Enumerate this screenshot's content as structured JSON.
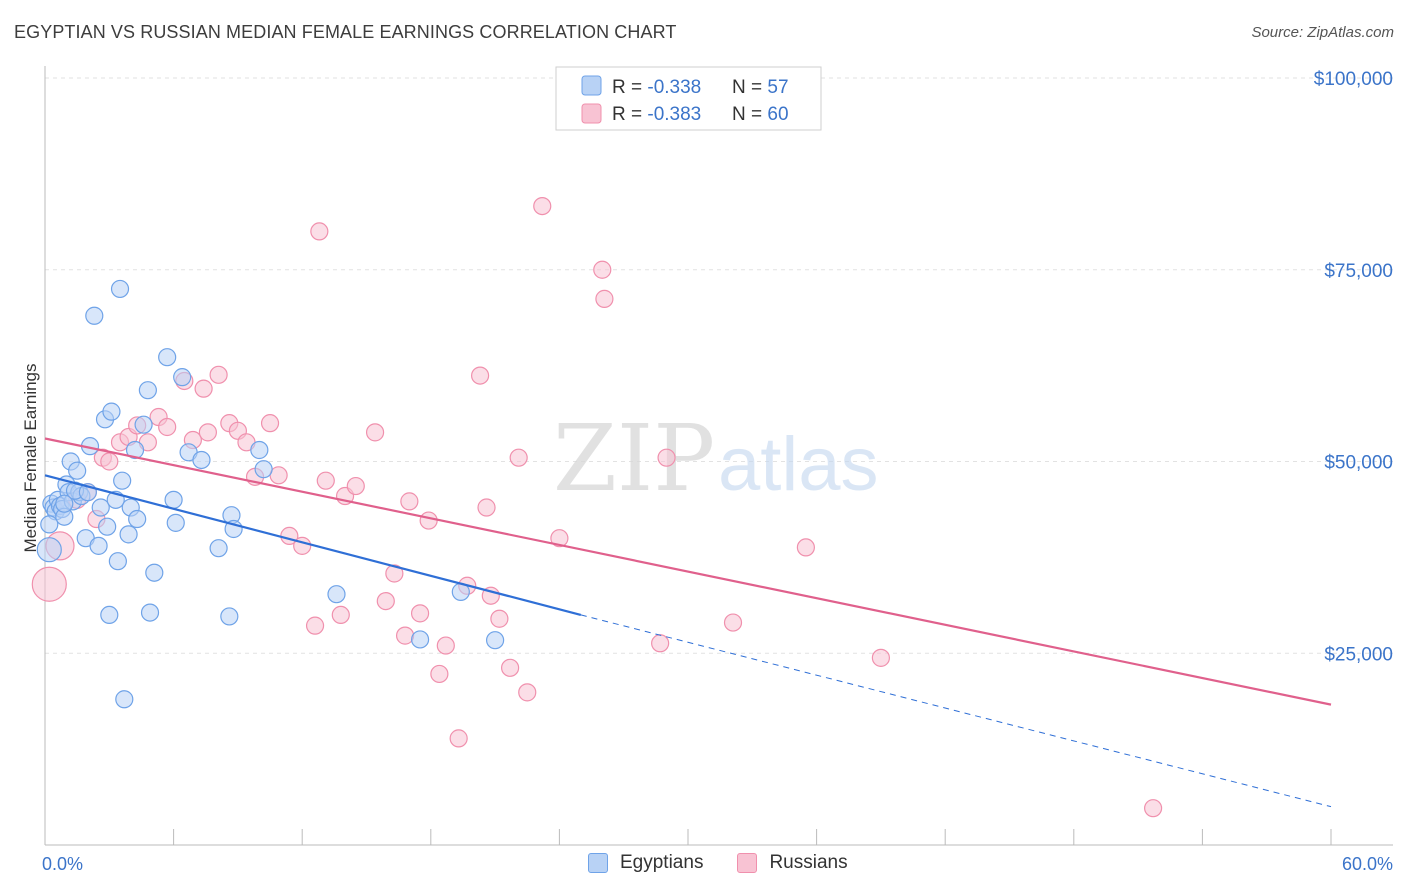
{
  "title": "EGYPTIAN VS RUSSIAN MEDIAN FEMALE EARNINGS CORRELATION CHART",
  "source": "Source: ZipAtlas.com",
  "watermark": {
    "zip": "ZIP",
    "atlas": "atlas"
  },
  "colors": {
    "blue": "#6fa3e8",
    "blue_fill": "#b8d2f5",
    "blue_line": "#2f6fd6",
    "pink": "#f090ad",
    "pink_fill": "#f8c3d3",
    "pink_line": "#e0608c",
    "axis_text": "#3b74c9",
    "grid": "#e2e2e2"
  },
  "legend_top": {
    "egyptians": {
      "r_label": "R = ",
      "r_value": "-0.338",
      "n_label": "N = ",
      "n_value": "57"
    },
    "russians": {
      "r_label": "R = ",
      "r_value": "-0.383",
      "n_label": "N = ",
      "n_value": "60"
    }
  },
  "legend_bottom": {
    "egyptians": "Egyptians",
    "russians": "Russians"
  },
  "chart_data": {
    "type": "scatter",
    "title": "EGYPTIAN VS RUSSIAN MEDIAN FEMALE EARNINGS CORRELATION CHART",
    "xlabel": "",
    "ylabel": "Median Female Earnings",
    "xlim": [
      0,
      60
    ],
    "ylim": [
      0,
      105000
    ],
    "x_tick_labels": {
      "left": "0.0%",
      "right": "60.0%"
    },
    "y_ticks": [
      {
        "value": 25000,
        "label": "$25,000"
      },
      {
        "value": 50000,
        "label": "$50,000"
      },
      {
        "value": 75000,
        "label": "$75,000"
      },
      {
        "value": 100000,
        "label": "$100,000"
      }
    ],
    "series": [
      {
        "name": "Egyptians",
        "r": -0.338,
        "n": 57,
        "trend": {
          "x0": 0,
          "y0": 48200,
          "x1": 25,
          "y1": 30000,
          "dash_x1": 60,
          "dash_y1": 5000
        },
        "points": [
          [
            0.3,
            44500
          ],
          [
            0.4,
            44000
          ],
          [
            0.5,
            43500
          ],
          [
            0.6,
            45000
          ],
          [
            0.7,
            44200
          ],
          [
            0.8,
            43800
          ],
          [
            0.9,
            42800
          ],
          [
            1.0,
            47000
          ],
          [
            1.1,
            46000
          ],
          [
            1.2,
            50000
          ],
          [
            1.3,
            44800
          ],
          [
            1.5,
            48800
          ],
          [
            1.6,
            46000
          ],
          [
            1.7,
            45500
          ],
          [
            1.9,
            40000
          ],
          [
            2.1,
            52000
          ],
          [
            2.3,
            69000
          ],
          [
            2.5,
            39000
          ],
          [
            2.6,
            44000
          ],
          [
            2.8,
            55500
          ],
          [
            2.9,
            41500
          ],
          [
            3.0,
            30000
          ],
          [
            3.1,
            56500
          ],
          [
            3.3,
            45000
          ],
          [
            3.4,
            37000
          ],
          [
            3.5,
            72500
          ],
          [
            3.6,
            47500
          ],
          [
            3.9,
            40500
          ],
          [
            4.0,
            44000
          ],
          [
            4.2,
            51500
          ],
          [
            4.3,
            42500
          ],
          [
            4.6,
            54800
          ],
          [
            4.9,
            30300
          ],
          [
            4.8,
            59300
          ],
          [
            5.1,
            35500
          ],
          [
            5.7,
            63600
          ],
          [
            6.0,
            45000
          ],
          [
            6.1,
            42000
          ],
          [
            6.4,
            61000
          ],
          [
            6.7,
            51200
          ],
          [
            7.3,
            50200
          ],
          [
            8.1,
            38700
          ],
          [
            8.7,
            43000
          ],
          [
            8.6,
            29800
          ],
          [
            8.8,
            41200
          ],
          [
            10.0,
            51500
          ],
          [
            10.2,
            49000
          ],
          [
            13.6,
            32700
          ],
          [
            19.4,
            33000
          ],
          [
            17.5,
            26800
          ],
          [
            21.0,
            26700
          ],
          [
            3.7,
            19000
          ],
          [
            0.2,
            38500
          ],
          [
            0.2,
            41800
          ],
          [
            1.4,
            46200
          ],
          [
            2.0,
            46000
          ],
          [
            0.9,
            44500
          ]
        ]
      },
      {
        "name": "Russians",
        "r": -0.383,
        "n": 60,
        "trend": {
          "x0": 0,
          "y0": 53000,
          "x1": 60,
          "y1": 18300
        },
        "points": [
          [
            0.2,
            34000
          ],
          [
            0.7,
            39000
          ],
          [
            1.5,
            45000
          ],
          [
            2.0,
            46000
          ],
          [
            2.7,
            50500
          ],
          [
            3.0,
            50000
          ],
          [
            3.5,
            52500
          ],
          [
            3.9,
            53200
          ],
          [
            4.3,
            54700
          ],
          [
            4.8,
            52500
          ],
          [
            5.3,
            55800
          ],
          [
            5.7,
            54500
          ],
          [
            6.5,
            60500
          ],
          [
            6.9,
            52800
          ],
          [
            7.4,
            59500
          ],
          [
            7.6,
            53800
          ],
          [
            8.1,
            61300
          ],
          [
            8.6,
            55000
          ],
          [
            9.0,
            54000
          ],
          [
            9.4,
            52500
          ],
          [
            9.8,
            48000
          ],
          [
            10.5,
            55000
          ],
          [
            10.9,
            48200
          ],
          [
            11.4,
            40300
          ],
          [
            12.0,
            39000
          ],
          [
            12.6,
            28600
          ],
          [
            12.8,
            80000
          ],
          [
            13.1,
            47500
          ],
          [
            13.8,
            30000
          ],
          [
            14.0,
            45500
          ],
          [
            14.5,
            46800
          ],
          [
            15.4,
            53800
          ],
          [
            15.9,
            31800
          ],
          [
            16.3,
            35400
          ],
          [
            16.8,
            27300
          ],
          [
            17.0,
            44800
          ],
          [
            17.5,
            30200
          ],
          [
            17.9,
            42300
          ],
          [
            18.4,
            22300
          ],
          [
            18.7,
            26000
          ],
          [
            19.3,
            13900
          ],
          [
            19.7,
            33800
          ],
          [
            20.3,
            61200
          ],
          [
            20.6,
            44000
          ],
          [
            20.8,
            32500
          ],
          [
            21.2,
            29500
          ],
          [
            21.7,
            23100
          ],
          [
            22.1,
            50500
          ],
          [
            22.5,
            19900
          ],
          [
            23.2,
            83300
          ],
          [
            24.0,
            40000
          ],
          [
            26.0,
            75000
          ],
          [
            26.1,
            71200
          ],
          [
            28.7,
            26300
          ],
          [
            29.0,
            50500
          ],
          [
            32.1,
            29000
          ],
          [
            35.5,
            38800
          ],
          [
            39.0,
            24400
          ],
          [
            51.7,
            4800
          ],
          [
            2.4,
            42500
          ]
        ]
      }
    ]
  }
}
